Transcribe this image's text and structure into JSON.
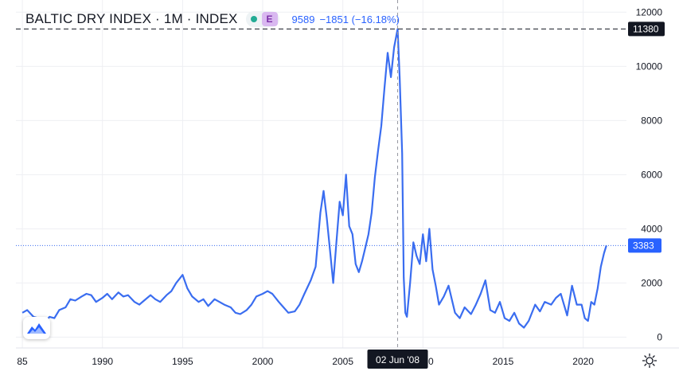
{
  "header": {
    "symbol": "BALTIC DRY INDEX · 1M · INDEX",
    "badge": "E",
    "last_value": "9589",
    "change": "−1851 (−16.18%)"
  },
  "crosshair": {
    "price_label": "11380",
    "price_value": 11380,
    "date_label": "02 Jun '08",
    "date_year": 2008.42
  },
  "last_price": {
    "label": "3383",
    "value": 3383
  },
  "icons": {
    "logo": "tradingview-logo-icon",
    "settings": "gear-icon"
  },
  "colors": {
    "line": "#3a6df0",
    "last_price_label_bg": "#2962ff",
    "crosshair_label_bg": "#131722",
    "grid": "#eeeff3",
    "axis_text": "#131722"
  },
  "chart_data": {
    "type": "line",
    "title": "BALTIC DRY INDEX · 1M · INDEX",
    "xlabel": "",
    "ylabel": "",
    "xlim": [
      1984.6,
      2022.7
    ],
    "ylim": [
      -400,
      12450
    ],
    "x_ticks": [
      "85",
      "1990",
      "1995",
      "2000",
      "2005",
      "2010",
      "2015",
      "2020"
    ],
    "x_tick_values": [
      1985,
      1990,
      1995,
      2000,
      2005,
      2010,
      2015,
      2020
    ],
    "y_ticks": [
      "0",
      "2000",
      "4000",
      "6000",
      "8000",
      "10000",
      "12000"
    ],
    "y_tick_values": [
      0,
      2000,
      4000,
      6000,
      8000,
      10000,
      12000
    ],
    "grid": true,
    "series": [
      {
        "x": [
          1985.0,
          1985.3,
          1985.7,
          1986.0,
          1986.4,
          1986.7,
          1987.0,
          1987.3,
          1987.7,
          1988.0,
          1988.3,
          1988.7,
          1989.0,
          1989.3,
          1989.6,
          1990.0,
          1990.3,
          1990.6,
          1991.0,
          1991.3,
          1991.6,
          1992.0,
          1992.3,
          1992.6,
          1993.0,
          1993.3,
          1993.6,
          1994.0,
          1994.3,
          1994.6,
          1995.0,
          1995.3,
          1995.6,
          1996.0,
          1996.3,
          1996.6,
          1997.0,
          1997.3,
          1997.6,
          1998.0,
          1998.3,
          1998.6,
          1999.0,
          1999.3,
          1999.6,
          2000.0,
          2000.3,
          2000.6,
          2001.0,
          2001.3,
          2001.6,
          2002.0,
          2002.3,
          2002.6,
          2003.0,
          2003.3,
          2003.6,
          2003.8,
          2004.0,
          2004.2,
          2004.4,
          2004.6,
          2004.8,
          2005.0,
          2005.2,
          2005.4,
          2005.6,
          2005.8,
          2006.0,
          2006.2,
          2006.4,
          2006.6,
          2006.8,
          2007.0,
          2007.2,
          2007.4,
          2007.6,
          2007.8,
          2008.0,
          2008.2,
          2008.42,
          2008.55,
          2008.7,
          2008.8,
          2008.9,
          2009.0,
          2009.2,
          2009.4,
          2009.6,
          2009.8,
          2010.0,
          2010.2,
          2010.4,
          2010.6,
          2010.8,
          2011.0,
          2011.3,
          2011.6,
          2012.0,
          2012.3,
          2012.6,
          2013.0,
          2013.3,
          2013.6,
          2013.9,
          2014.2,
          2014.5,
          2014.8,
          2015.1,
          2015.4,
          2015.7,
          2016.0,
          2016.3,
          2016.6,
          2017.0,
          2017.3,
          2017.6,
          2018.0,
          2018.3,
          2018.6,
          2019.0,
          2019.3,
          2019.6,
          2019.9,
          2020.1,
          2020.3,
          2020.5,
          2020.7,
          2020.9,
          2021.1,
          2021.3,
          2021.45
        ],
        "y": [
          900,
          1000,
          750,
          700,
          550,
          750,
          700,
          1000,
          1100,
          1400,
          1350,
          1500,
          1600,
          1550,
          1300,
          1450,
          1600,
          1400,
          1650,
          1500,
          1550,
          1300,
          1200,
          1350,
          1550,
          1400,
          1300,
          1550,
          1700,
          2000,
          2300,
          1800,
          1500,
          1300,
          1400,
          1150,
          1400,
          1300,
          1200,
          1100,
          900,
          850,
          1000,
          1200,
          1500,
          1600,
          1700,
          1600,
          1300,
          1100,
          900,
          950,
          1200,
          1600,
          2100,
          2600,
          4600,
          5400,
          4400,
          3200,
          2000,
          3500,
          5000,
          4500,
          6000,
          4100,
          3800,
          2700,
          2400,
          2800,
          3300,
          3800,
          4600,
          5900,
          6900,
          7800,
          9200,
          10500,
          9600,
          10700,
          11380,
          9589,
          6800,
          2200,
          900,
          750,
          2000,
          3500,
          3000,
          2700,
          3800,
          2800,
          4000,
          2500,
          1900,
          1200,
          1500,
          1900,
          900,
          700,
          1100,
          850,
          1200,
          1600,
          2100,
          1000,
          900,
          1300,
          700,
          600,
          900,
          500,
          350,
          600,
          1200,
          950,
          1300,
          1200,
          1450,
          1600,
          800,
          1900,
          1200,
          1200,
          700,
          600,
          1300,
          1200,
          1800,
          2600,
          3100,
          3383
        ]
      }
    ]
  }
}
